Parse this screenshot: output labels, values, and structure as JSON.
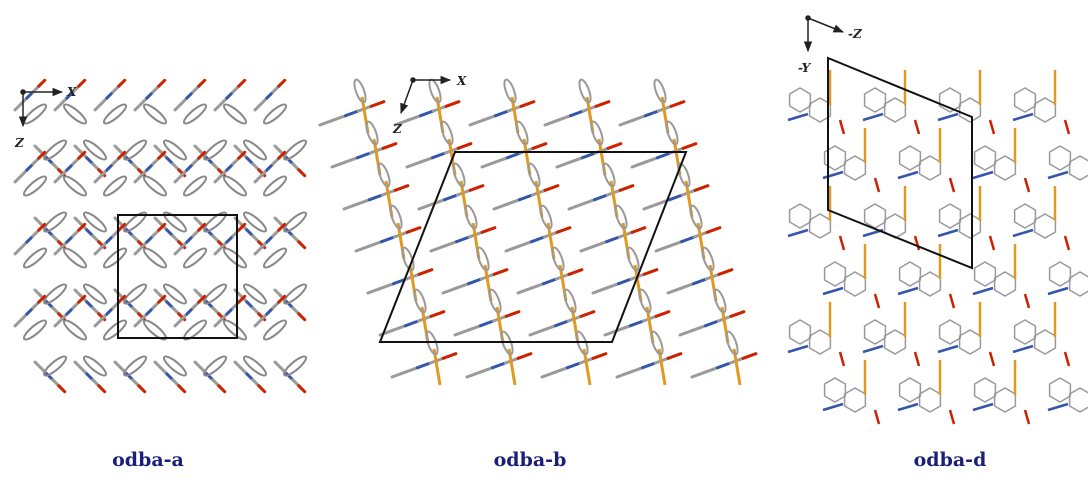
{
  "panels": [
    {
      "caption": "odba-a",
      "axes": [
        "X",
        "Z"
      ]
    },
    {
      "caption": "odba-b",
      "axes": [
        "X",
        "Z"
      ]
    },
    {
      "caption": "odba-d",
      "axes": [
        "-Z",
        "-Y"
      ]
    }
  ]
}
